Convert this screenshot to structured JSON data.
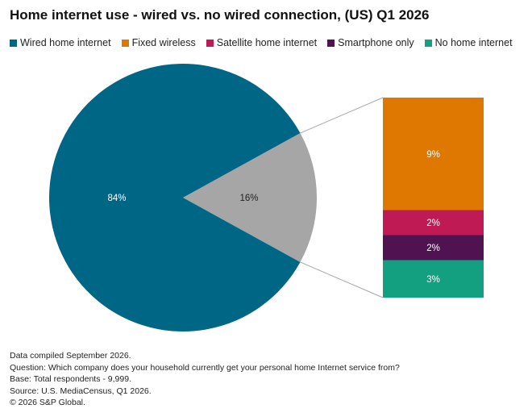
{
  "chart_data": {
    "type": "pie",
    "title": "Home internet use - wired vs. no wired connection, (US) Q1 2026",
    "pie": {
      "slices": [
        {
          "name": "Wired home internet",
          "value": 84,
          "label": "84%",
          "color": "#006685"
        },
        {
          "name": "",
          "value": 16,
          "label": "16%",
          "color": "#A6A6A6"
        }
      ]
    },
    "breakdown": {
      "type": "stacked-bar",
      "segments": [
        {
          "name": "Fixed wireless",
          "value": 9,
          "label": "9%",
          "color": "#DE7800"
        },
        {
          "name": "Satellite home internet",
          "value": 2,
          "label": "2%",
          "color": "#C01A54"
        },
        {
          "name": "Smartphone only",
          "value": 2,
          "label": "2%",
          "color": "#4E1350"
        },
        {
          "name": "No home internet",
          "value": 3,
          "label": "3%",
          "color": "#12A080"
        }
      ]
    },
    "legend": [
      {
        "name": "Wired home internet",
        "color": "#006685"
      },
      {
        "name": "Fixed wireless",
        "color": "#DE7800"
      },
      {
        "name": "Satellite home internet",
        "color": "#C01A54"
      },
      {
        "name": "Smartphone only",
        "color": "#4E1350"
      },
      {
        "name": "No home internet",
        "color": "#12A080"
      }
    ],
    "legend_position": "top"
  },
  "footnotes": [
    "Data compiled September 2026.",
    "Question: Which company does your household currently get your personal home Internet service from?",
    "Base: Total respondents - 9,999.",
    "Source: U.S. MediaCensus, Q1 2026.",
    "© 2026 S&P Global."
  ]
}
